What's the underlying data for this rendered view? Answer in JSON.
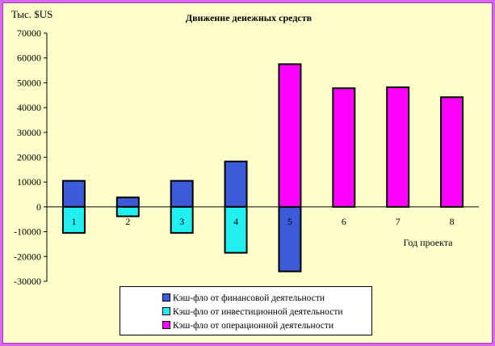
{
  "chart_data": {
    "type": "bar",
    "stacked": true,
    "title": "Движение денежных средств",
    "ylabel": "Тыс. $US",
    "xlabel": "Год проекта",
    "ylim": [
      -30000,
      70000
    ],
    "ytick_step": 10000,
    "categories": [
      "1",
      "2",
      "3",
      "4",
      "5",
      "6",
      "7",
      "8"
    ],
    "series": [
      {
        "name": "Кэш-фло от финансовой деятельности",
        "color": "#3b5bdb",
        "values": [
          10500,
          3800,
          10500,
          18300,
          -26000,
          0,
          0,
          0
        ]
      },
      {
        "name": "Кэш-фло от инвестиционной деятельности",
        "color": "#22f0f0",
        "values": [
          -10500,
          -3800,
          -10500,
          -18500,
          0,
          0,
          0,
          0
        ]
      },
      {
        "name": "Кэш-фло от операционной деятельности",
        "color": "#ff00ff",
        "values": [
          0,
          0,
          0,
          0,
          57500,
          47800,
          48200,
          44200
        ]
      }
    ],
    "legend_position": "bottom-center",
    "grid": false
  }
}
